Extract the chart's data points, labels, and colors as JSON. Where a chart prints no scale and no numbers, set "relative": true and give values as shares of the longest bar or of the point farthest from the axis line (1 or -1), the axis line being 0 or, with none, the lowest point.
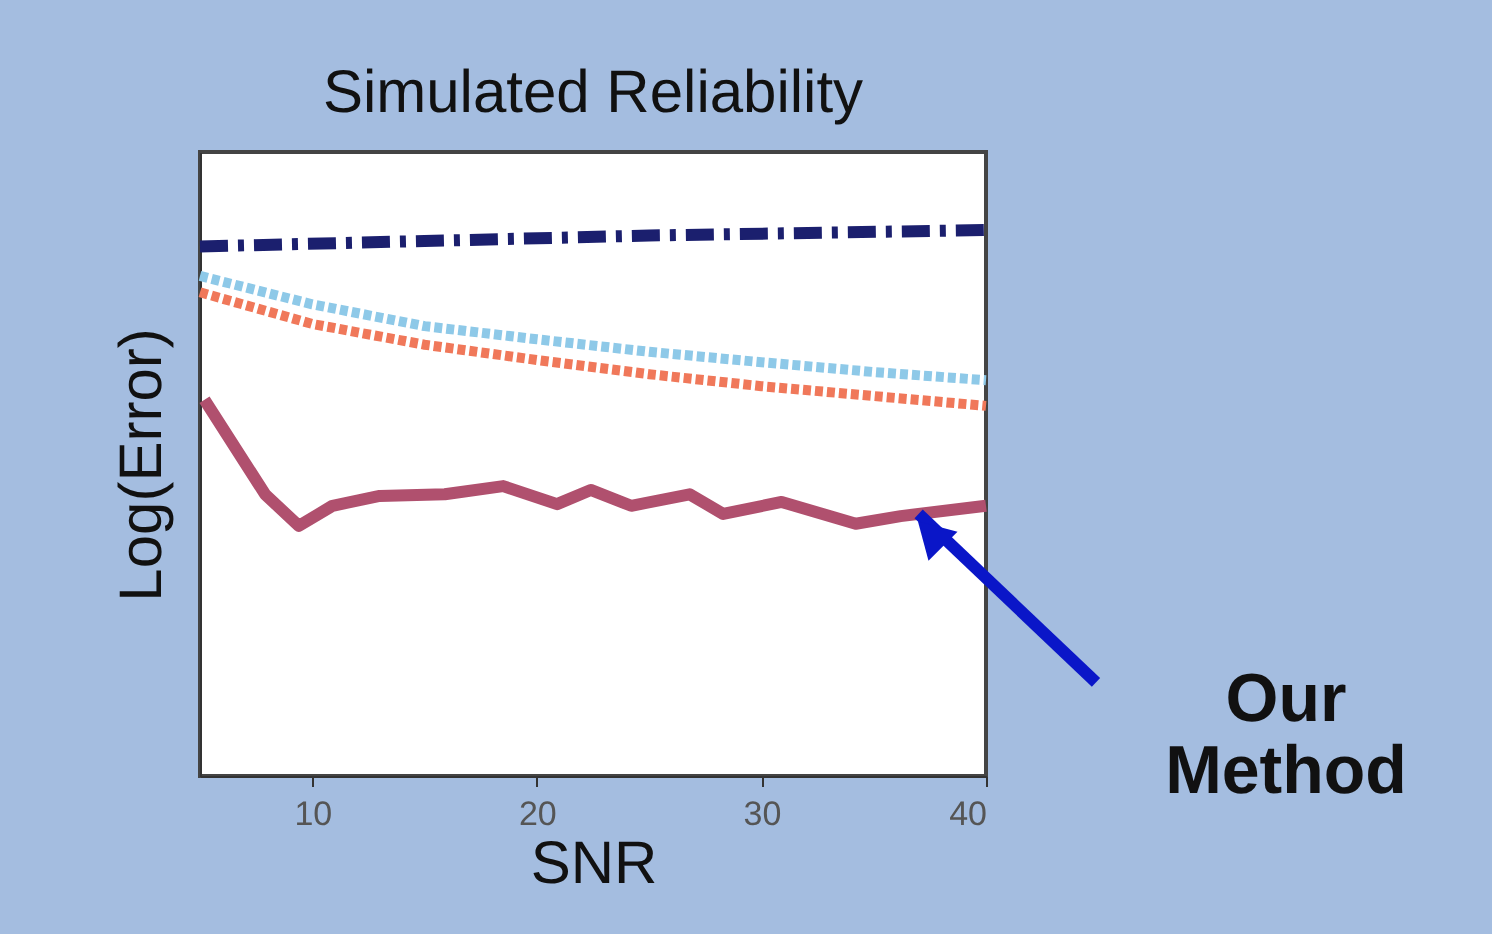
{
  "chart_data": {
    "type": "line",
    "title": "Simulated Reliability",
    "xlabel": "SNR",
    "ylabel": "Log(Error)",
    "relative": true,
    "xlim": [
      5,
      40
    ],
    "xticks": [
      10,
      20,
      30,
      40
    ],
    "grid": false,
    "annotations": [
      {
        "text": "Our Method",
        "x": 37,
        "y": 0.48
      }
    ],
    "series": [
      {
        "color": "#1b1f6e",
        "line_style": "dashed",
        "x": [
          5,
          15,
          25,
          40
        ],
        "values": [
          0.97,
          0.98,
          0.99,
          1.0
        ]
      },
      {
        "color": "#8ec9e8",
        "line_style": "dotted",
        "x": [
          5,
          10,
          15,
          20,
          25,
          30,
          35,
          40
        ],
        "values": [
          0.916,
          0.864,
          0.824,
          0.8,
          0.777,
          0.758,
          0.74,
          0.725
        ]
      },
      {
        "color": "#f0785a",
        "line_style": "dotted",
        "x": [
          5,
          10,
          15,
          20,
          25,
          30,
          35,
          40
        ],
        "values": [
          0.886,
          0.828,
          0.79,
          0.762,
          0.736,
          0.714,
          0.696,
          0.678
        ]
      },
      {
        "color": "#b0506e",
        "line_style": "solid",
        "x": [
          5.2,
          7.9,
          9.4,
          10.9,
          13,
          15.9,
          18.5,
          20.9,
          22.4,
          24.2,
          26.8,
          28.3,
          30.9,
          34.2,
          36.2,
          40
        ],
        "values": [
          0.689,
          0.516,
          0.458,
          0.495,
          0.513,
          0.516,
          0.531,
          0.498,
          0.524,
          0.495,
          0.516,
          0.48,
          0.502,
          0.462,
          0.476,
          0.495
        ]
      }
    ]
  }
}
